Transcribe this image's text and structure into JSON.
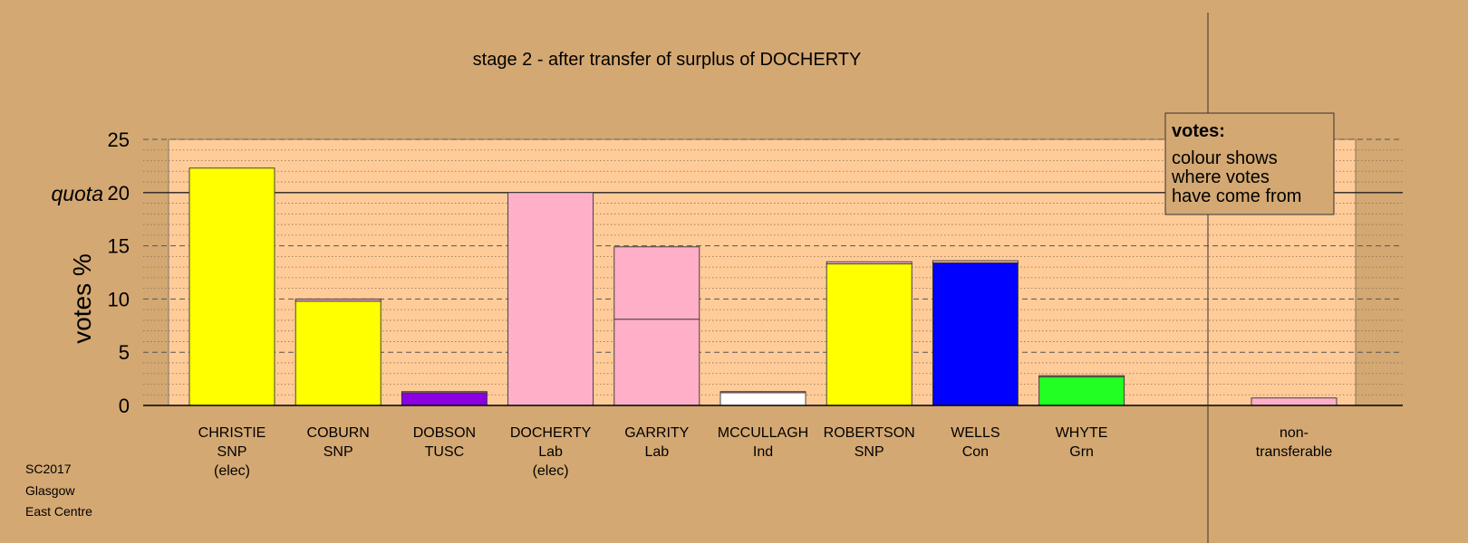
{
  "chart_data": {
    "type": "bar",
    "title": "stage 2 - after transfer of surplus of DOCHERTY",
    "ylabel": "votes %",
    "xlabel": "",
    "ylim": [
      0,
      25
    ],
    "yticks": [
      0,
      5,
      10,
      15,
      20,
      25
    ],
    "quota": {
      "value": 20,
      "label": "quota"
    },
    "grid": true,
    "candidates": [
      {
        "name": "CHRISTIE",
        "party": "SNP",
        "note": "(elec)",
        "segments": [
          {
            "value": 22.3,
            "color": "#ffff00"
          }
        ]
      },
      {
        "name": "COBURN",
        "party": "SNP",
        "note": "",
        "segments": [
          {
            "value": 9.8,
            "color": "#ffff00"
          },
          {
            "value": 0.2,
            "color": "#ffb0c8"
          }
        ]
      },
      {
        "name": "DOBSON",
        "party": "TUSC",
        "note": "",
        "segments": [
          {
            "value": 1.2,
            "color": "#8b00e0"
          },
          {
            "value": 0.1,
            "color": "#ffb0c8"
          }
        ]
      },
      {
        "name": "DOCHERTY",
        "party": "Lab",
        "note": "(elec)",
        "segments": [
          {
            "value": 20.0,
            "color": "#ffb0c8"
          }
        ]
      },
      {
        "name": "GARRITY",
        "party": "Lab",
        "note": "",
        "segments": [
          {
            "value": 8.1,
            "color": "#ffb0c8"
          },
          {
            "value": 6.8,
            "color": "#ffb0c8"
          }
        ]
      },
      {
        "name": "MCCULLAGH",
        "party": "Ind",
        "note": "",
        "segments": [
          {
            "value": 1.2,
            "color": "#ffffff"
          },
          {
            "value": 0.1,
            "color": "#ffb0c8"
          }
        ]
      },
      {
        "name": "ROBERTSON",
        "party": "SNP",
        "note": "",
        "segments": [
          {
            "value": 13.3,
            "color": "#ffff00"
          },
          {
            "value": 0.2,
            "color": "#ffb0c8"
          }
        ]
      },
      {
        "name": "WELLS",
        "party": "Con",
        "note": "",
        "segments": [
          {
            "value": 13.4,
            "color": "#0000ff"
          },
          {
            "value": 0.2,
            "color": "#ffb0c8"
          }
        ]
      },
      {
        "name": "WHYTE",
        "party": "Grn",
        "note": "",
        "segments": [
          {
            "value": 2.7,
            "color": "#22ff22"
          },
          {
            "value": 0.1,
            "color": "#ffb0c8"
          }
        ]
      }
    ],
    "nontransferable": {
      "label_line1": "non-",
      "label_line2": "transferable",
      "segments": [
        {
          "value": 0.7,
          "color": "#ffb0c8"
        }
      ]
    },
    "legend": {
      "title": "votes:",
      "lines": [
        "colour shows",
        "where votes",
        "have come from"
      ],
      "position": "top-right"
    }
  },
  "footer": {
    "line1": "SC2017",
    "line2": "Glasgow",
    "line3": "East Centre"
  },
  "colors": {
    "background": "#d4a872",
    "plot_area": "#ffcc99",
    "plot_side_area": "#d4a872"
  }
}
